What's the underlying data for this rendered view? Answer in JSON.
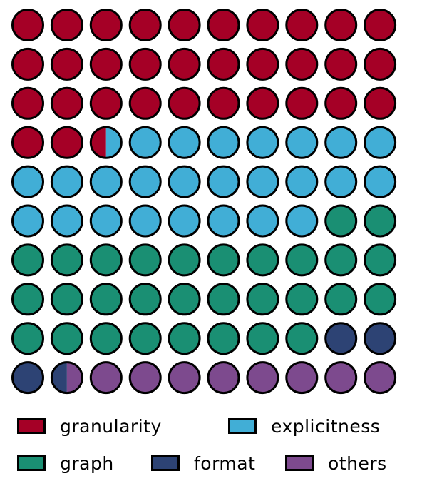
{
  "chart_data": {
    "type": "waffle",
    "grid": {
      "rows": 10,
      "cols": 10,
      "total_units": 100
    },
    "categories": [
      "granularity",
      "explicitness",
      "graph",
      "format",
      "others"
    ],
    "values": [
      32.5,
      25.5,
      30.0,
      3.5,
      8.5
    ],
    "colors": {
      "granularity": "#A50026",
      "explicitness": "#41AED6",
      "graph": "#1A8F73",
      "format": "#2D4374",
      "others": "#7D4A8E"
    },
    "legend": {
      "position": "bottom",
      "entries": [
        "granularity",
        "explicitness",
        "graph",
        "format",
        "others"
      ]
    }
  }
}
